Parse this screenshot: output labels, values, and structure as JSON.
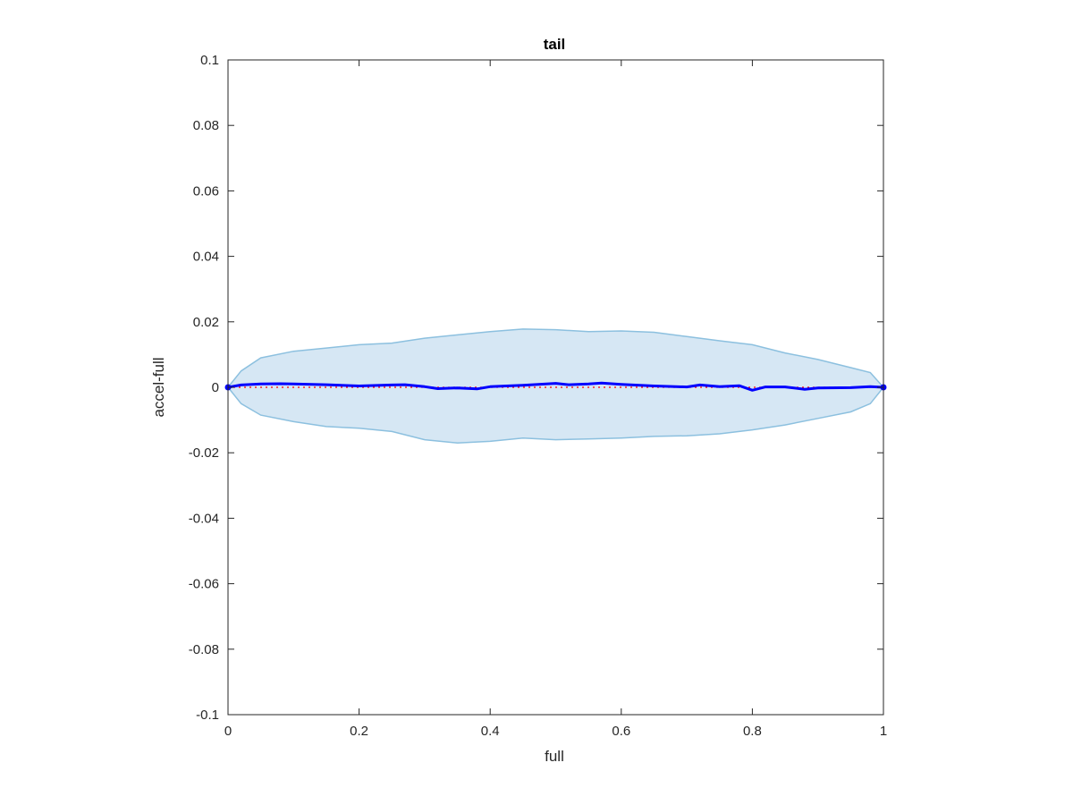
{
  "chart_data": {
    "type": "line",
    "title": "tail",
    "xlabel": "full",
    "ylabel": "accel-full",
    "xlim": [
      0,
      1
    ],
    "ylim": [
      -0.1,
      0.1
    ],
    "xticks": [
      0,
      0.2,
      0.4,
      0.6,
      0.8,
      1
    ],
    "xtick_labels": [
      "0",
      "0.2",
      "0.4",
      "0.6",
      "0.8",
      "1"
    ],
    "yticks": [
      -0.1,
      -0.08,
      -0.06,
      -0.04,
      -0.02,
      0,
      0.02,
      0.04,
      0.06,
      0.08,
      0.1
    ],
    "ytick_labels": [
      "-0.1",
      "-0.08",
      "-0.06",
      "-0.04",
      "-0.02",
      "0",
      "0.02",
      "0.04",
      "0.06",
      "0.08",
      "0.1"
    ],
    "grid": false,
    "colors": {
      "band_fill": "#d6e7f4",
      "band_edge": "#8cc0df",
      "mean_line": "#0000ff",
      "zero_line": "#ff0000",
      "axes": "#262626"
    },
    "series": [
      {
        "kind": "band-upper",
        "x": [
          0,
          0.02,
          0.05,
          0.1,
          0.15,
          0.2,
          0.25,
          0.3,
          0.35,
          0.4,
          0.45,
          0.5,
          0.55,
          0.6,
          0.65,
          0.7,
          0.75,
          0.8,
          0.85,
          0.9,
          0.95,
          0.98,
          1
        ],
        "y": [
          0,
          0.005,
          0.009,
          0.011,
          0.012,
          0.013,
          0.0135,
          0.015,
          0.016,
          0.017,
          0.0178,
          0.0176,
          0.017,
          0.0172,
          0.0168,
          0.0155,
          0.0142,
          0.013,
          0.0105,
          0.0085,
          0.006,
          0.0045,
          0
        ]
      },
      {
        "kind": "band-lower",
        "x": [
          0,
          0.02,
          0.05,
          0.1,
          0.15,
          0.2,
          0.25,
          0.3,
          0.35,
          0.4,
          0.45,
          0.5,
          0.55,
          0.6,
          0.65,
          0.7,
          0.75,
          0.8,
          0.85,
          0.9,
          0.95,
          0.98,
          1
        ],
        "y": [
          0,
          -0.005,
          -0.0085,
          -0.0105,
          -0.012,
          -0.0125,
          -0.0135,
          -0.016,
          -0.017,
          -0.0165,
          -0.0155,
          -0.016,
          -0.0158,
          -0.0155,
          -0.015,
          -0.0148,
          -0.0142,
          -0.013,
          -0.0115,
          -0.0095,
          -0.0075,
          -0.005,
          0
        ]
      },
      {
        "kind": "mean",
        "x": [
          0,
          0.02,
          0.05,
          0.08,
          0.1,
          0.15,
          0.2,
          0.25,
          0.27,
          0.3,
          0.32,
          0.35,
          0.38,
          0.4,
          0.45,
          0.5,
          0.52,
          0.55,
          0.57,
          0.6,
          0.65,
          0.7,
          0.72,
          0.75,
          0.78,
          0.8,
          0.82,
          0.85,
          0.88,
          0.9,
          0.95,
          0.98,
          1
        ],
        "y": [
          0,
          0.0007,
          0.001,
          0.0011,
          0.001,
          0.0008,
          0.0004,
          0.0007,
          0.0008,
          0.0002,
          -0.0004,
          -0.0002,
          -0.0005,
          0.0002,
          0.0006,
          0.0012,
          0.0008,
          0.001,
          0.0013,
          0.0009,
          0.0004,
          0.0001,
          0.0007,
          0.0002,
          0.0005,
          -0.0009,
          0.0001,
          0.0001,
          -0.0006,
          -0.0002,
          -0.0001,
          0.0002,
          0
        ]
      },
      {
        "kind": "zero-reference",
        "x": [
          0,
          1
        ],
        "y": [
          0,
          0
        ]
      }
    ]
  }
}
